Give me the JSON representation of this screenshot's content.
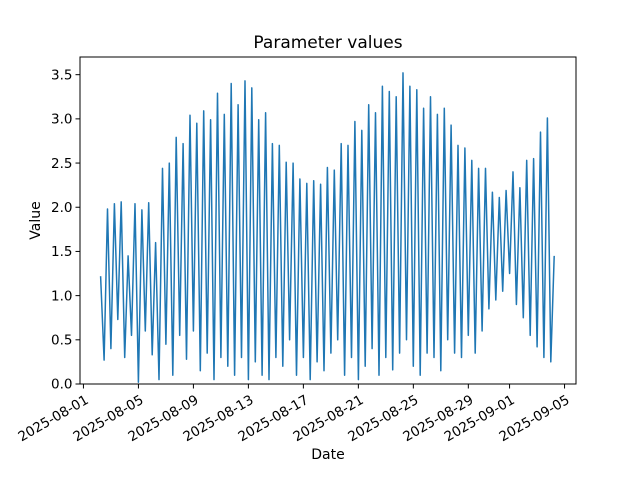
{
  "chart_data": {
    "type": "line",
    "title": "Parameter values",
    "xlabel": "Date",
    "ylabel": "Value",
    "line_color": "#1f77b4",
    "background_color": "#ffffff",
    "grid": false,
    "legend": "none",
    "marker": "none",
    "x_start": "2025-08-02T06:00",
    "x_step_hours": 6,
    "values": [
      1.22,
      0.27,
      1.98,
      0.4,
      2.04,
      0.73,
      2.06,
      0.3,
      1.45,
      0.55,
      2.04,
      0.02,
      1.97,
      0.6,
      2.05,
      0.33,
      1.6,
      0.05,
      2.44,
      0.45,
      2.5,
      0.1,
      2.79,
      0.55,
      2.72,
      0.28,
      3.04,
      0.6,
      2.95,
      0.15,
      3.09,
      0.35,
      2.99,
      0.05,
      3.29,
      0.3,
      3.05,
      0.2,
      3.4,
      0.1,
      3.16,
      0.3,
      3.43,
      0.05,
      3.35,
      0.25,
      2.99,
      0.1,
      3.07,
      0.05,
      2.72,
      0.3,
      2.7,
      0.2,
      2.51,
      0.5,
      2.5,
      0.1,
      2.32,
      0.3,
      2.27,
      0.05,
      2.3,
      0.25,
      2.26,
      0.15,
      2.45,
      0.35,
      2.42,
      0.5,
      2.72,
      0.1,
      2.7,
      0.3,
      2.97,
      0.05,
      2.87,
      0.2,
      3.16,
      0.4,
      3.07,
      0.1,
      3.37,
      0.3,
      3.31,
      0.16,
      3.25,
      0.35,
      3.52,
      0.5,
      3.37,
      0.2,
      3.33,
      0.1,
      3.12,
      0.35,
      3.25,
      0.3,
      3.05,
      0.15,
      3.12,
      0.5,
      2.93,
      0.35,
      2.7,
      0.3,
      2.67,
      0.55,
      2.53,
      0.35,
      2.44,
      0.6,
      2.44,
      0.85,
      2.17,
      0.95,
      2.11,
      1.05,
      2.19,
      1.25,
      2.4,
      0.9,
      2.22,
      0.75,
      2.53,
      0.55,
      2.55,
      0.42,
      2.85,
      0.3,
      3.01,
      0.25,
      1.45
    ],
    "xlim": [
      "2025-07-31T18:00",
      "2025-09-05T20:00"
    ],
    "ylim": [
      0,
      3.7
    ],
    "xtick_dates": [
      "2025-08-01",
      "2025-08-05",
      "2025-08-09",
      "2025-08-13",
      "2025-08-17",
      "2025-08-21",
      "2025-08-25",
      "2025-08-29",
      "2025-09-01",
      "2025-09-05"
    ],
    "xtick_labels": [
      "2025-08-01",
      "2025-08-05",
      "2025-08-09",
      "2025-08-13",
      "2025-08-17",
      "2025-08-21",
      "2025-08-25",
      "2025-08-29",
      "2025-09-01",
      "2025-09-05"
    ],
    "xtick_rotation_deg": 30,
    "ytick_values": [
      0.0,
      0.5,
      1.0,
      1.5,
      2.0,
      2.5,
      3.0,
      3.5
    ],
    "ytick_labels": [
      "0.0",
      "0.5",
      "1.0",
      "1.5",
      "2.0",
      "2.5",
      "3.0",
      "3.5"
    ]
  }
}
